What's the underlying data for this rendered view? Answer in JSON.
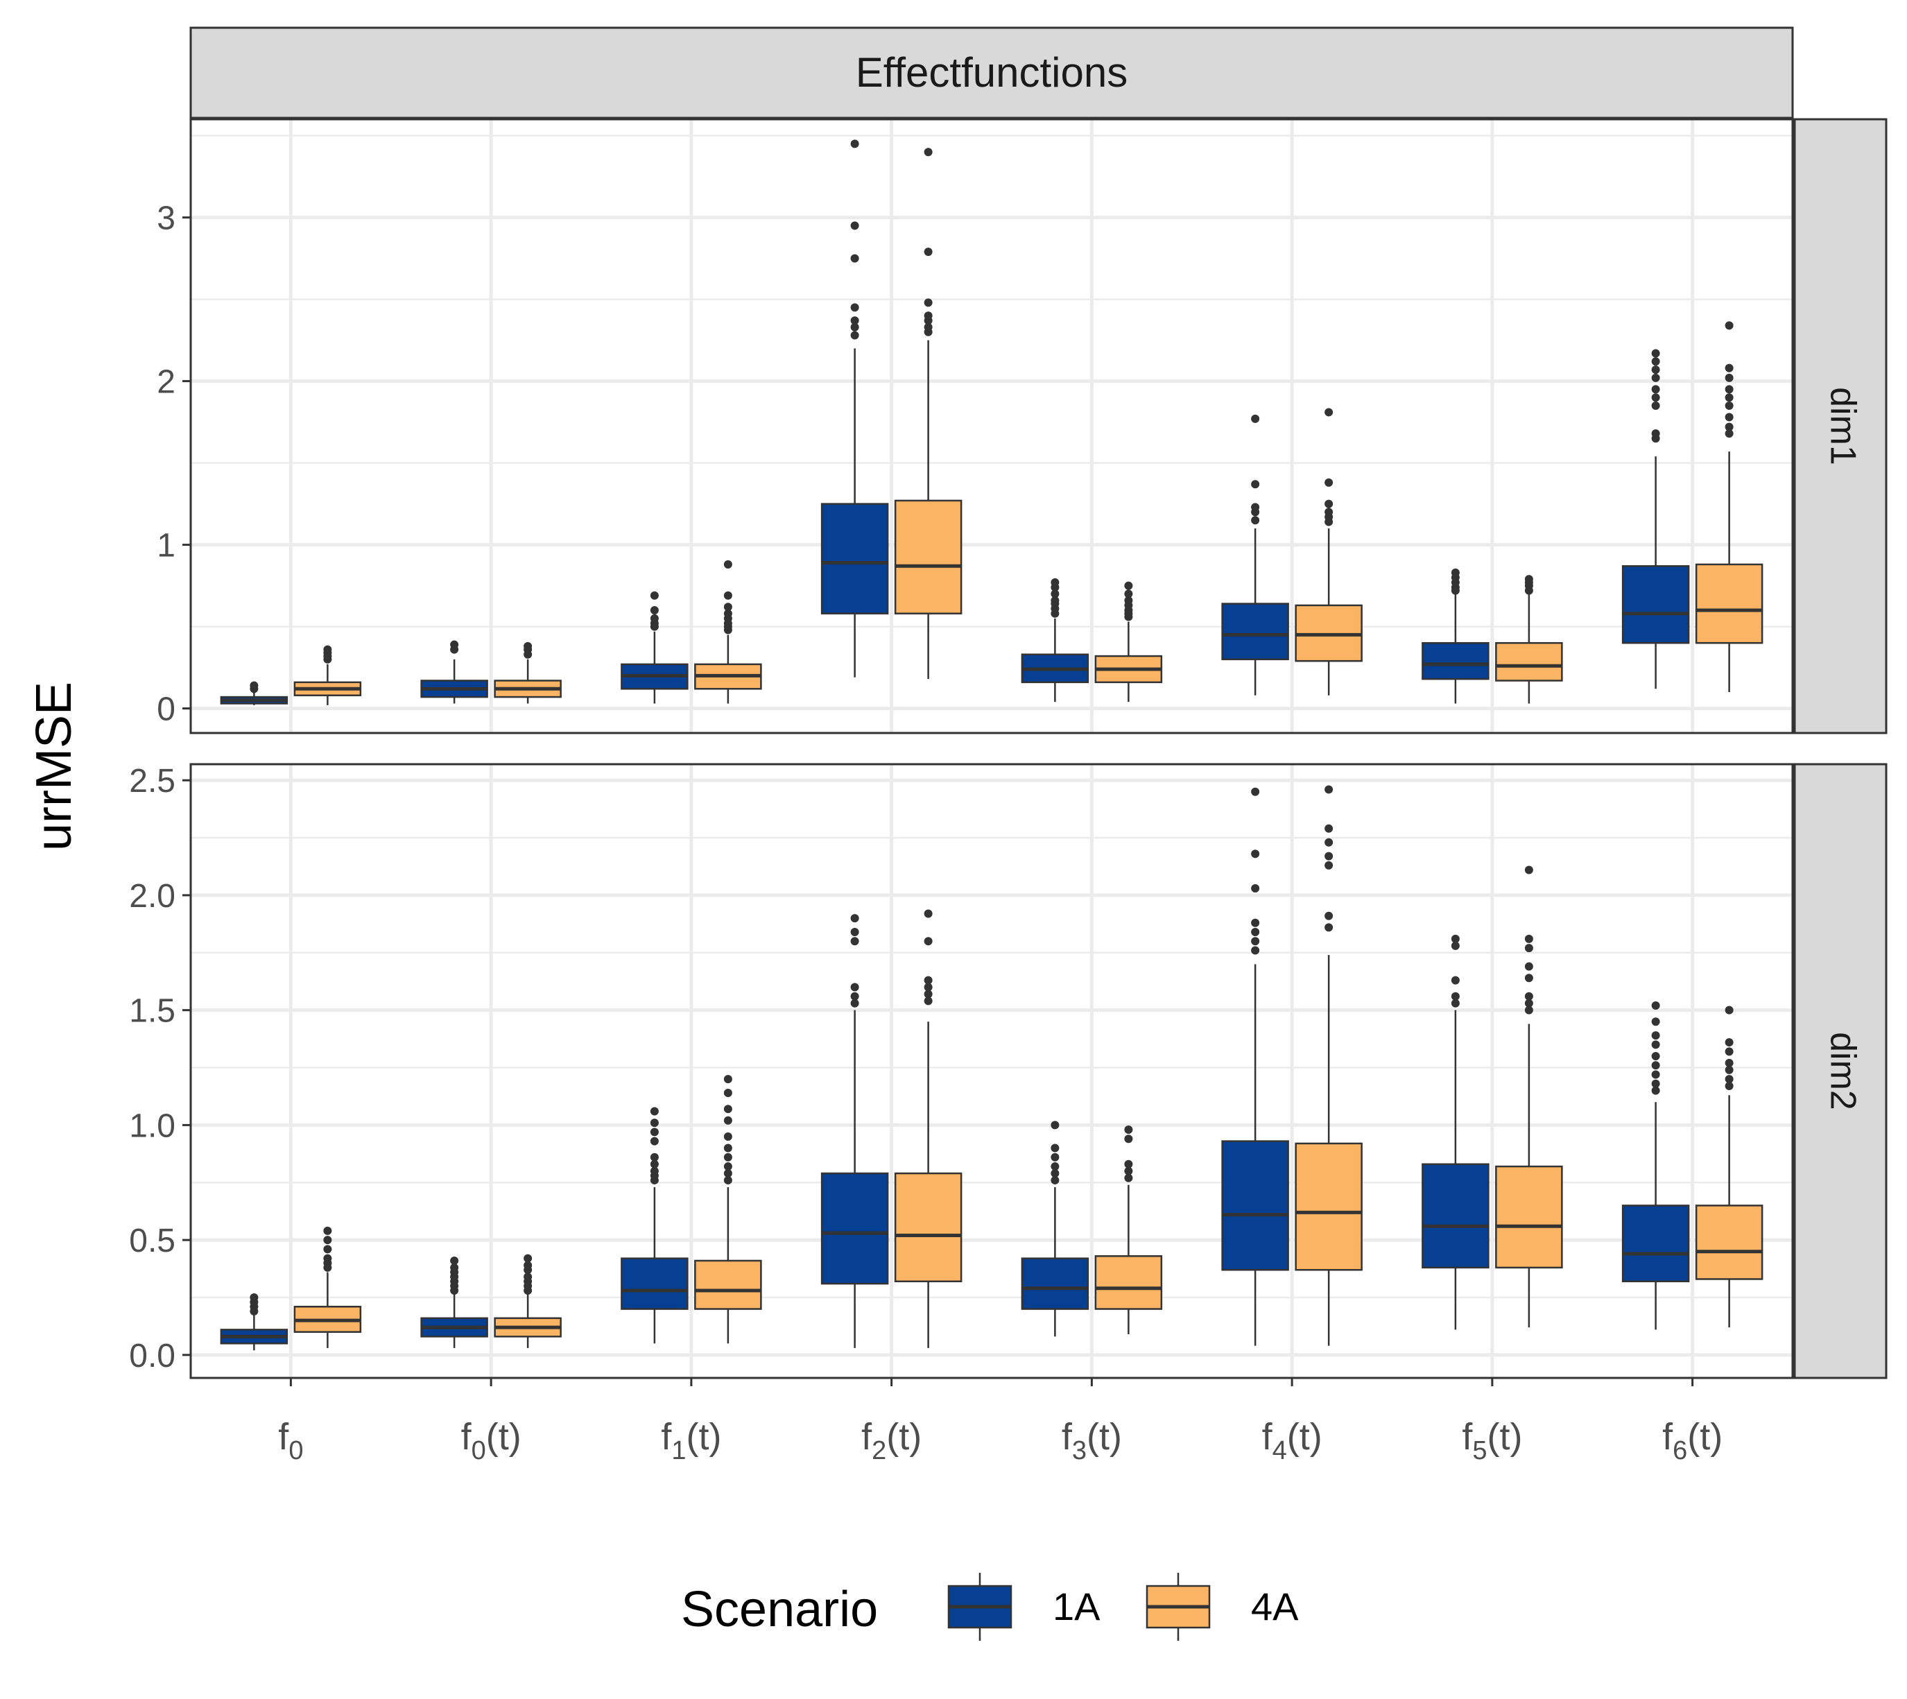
{
  "chart_data": {
    "type": "boxplot",
    "strip_title": "Effectfunctions",
    "ylabel": "urrMSE",
    "legend": {
      "title": "Scenario",
      "position": "bottom",
      "entries": [
        {
          "name": "1A",
          "color": "#073F92"
        },
        {
          "name": "4A",
          "color": "#FBB463"
        }
      ]
    },
    "categories": [
      {
        "base": "f",
        "sub": "0",
        "arg": ""
      },
      {
        "base": "f",
        "sub": "0",
        "arg": "t"
      },
      {
        "base": "f",
        "sub": "1",
        "arg": "t"
      },
      {
        "base": "f",
        "sub": "2",
        "arg": "t"
      },
      {
        "base": "f",
        "sub": "3",
        "arg": "t"
      },
      {
        "base": "f",
        "sub": "4",
        "arg": "t"
      },
      {
        "base": "f",
        "sub": "5",
        "arg": "t"
      },
      {
        "base": "f",
        "sub": "6",
        "arg": "t"
      }
    ],
    "panels": [
      {
        "label": "dim1",
        "ylim": [
          -0.15,
          3.6
        ],
        "major_ticks": [
          0,
          1,
          2,
          3
        ],
        "tick_labels": [
          "0",
          "1",
          "2",
          "3"
        ],
        "minor_ticks": [
          0.5,
          1.5,
          2.5,
          3.5
        ],
        "series": [
          {
            "name": "1A",
            "boxes": [
              {
                "min": 0.02,
                "q1": 0.03,
                "median": 0.05,
                "q3": 0.07,
                "max": 0.1,
                "outliers": [
                  0.12,
                  0.14
                ]
              },
              {
                "min": 0.03,
                "q1": 0.07,
                "median": 0.12,
                "q3": 0.17,
                "max": 0.3,
                "outliers": [
                  0.36,
                  0.39
                ]
              },
              {
                "min": 0.03,
                "q1": 0.12,
                "median": 0.2,
                "q3": 0.27,
                "max": 0.47,
                "outliers": [
                  0.5,
                  0.52,
                  0.55,
                  0.6,
                  0.69
                ]
              },
              {
                "min": 0.19,
                "q1": 0.58,
                "median": 0.89,
                "q3": 1.25,
                "max": 2.2,
                "outliers": [
                  2.28,
                  2.33,
                  2.37,
                  2.45,
                  2.75,
                  2.95,
                  3.45
                ]
              },
              {
                "min": 0.04,
                "q1": 0.16,
                "median": 0.24,
                "q3": 0.33,
                "max": 0.55,
                "outliers": [
                  0.58,
                  0.61,
                  0.64,
                  0.66,
                  0.7,
                  0.74,
                  0.77
                ]
              },
              {
                "min": 0.08,
                "q1": 0.3,
                "median": 0.45,
                "q3": 0.64,
                "max": 1.1,
                "outliers": [
                  1.15,
                  1.2,
                  1.23,
                  1.37,
                  1.77
                ]
              },
              {
                "min": 0.03,
                "q1": 0.18,
                "median": 0.27,
                "q3": 0.4,
                "max": 0.7,
                "outliers": [
                  0.72,
                  0.74,
                  0.77,
                  0.8,
                  0.83
                ]
              },
              {
                "min": 0.12,
                "q1": 0.4,
                "median": 0.58,
                "q3": 0.87,
                "max": 1.54,
                "outliers": [
                  1.65,
                  1.68,
                  1.85,
                  1.9,
                  1.95,
                  2.02,
                  2.07,
                  2.12,
                  2.17
                ]
              }
            ]
          },
          {
            "name": "4A",
            "boxes": [
              {
                "min": 0.02,
                "q1": 0.08,
                "median": 0.12,
                "q3": 0.16,
                "max": 0.27,
                "outliers": [
                  0.3,
                  0.32,
                  0.34,
                  0.36
                ]
              },
              {
                "min": 0.03,
                "q1": 0.07,
                "median": 0.12,
                "q3": 0.17,
                "max": 0.3,
                "outliers": [
                  0.33,
                  0.36,
                  0.38
                ]
              },
              {
                "min": 0.03,
                "q1": 0.12,
                "median": 0.2,
                "q3": 0.27,
                "max": 0.45,
                "outliers": [
                  0.48,
                  0.5,
                  0.52,
                  0.55,
                  0.58,
                  0.62,
                  0.69,
                  0.88
                ]
              },
              {
                "min": 0.18,
                "q1": 0.58,
                "median": 0.87,
                "q3": 1.27,
                "max": 2.25,
                "outliers": [
                  2.3,
                  2.33,
                  2.37,
                  2.4,
                  2.48,
                  2.79,
                  3.4
                ]
              },
              {
                "min": 0.04,
                "q1": 0.16,
                "median": 0.24,
                "q3": 0.32,
                "max": 0.53,
                "outliers": [
                  0.56,
                  0.58,
                  0.6,
                  0.63,
                  0.66,
                  0.7,
                  0.75
                ]
              },
              {
                "min": 0.08,
                "q1": 0.29,
                "median": 0.45,
                "q3": 0.63,
                "max": 1.1,
                "outliers": [
                  1.14,
                  1.17,
                  1.2,
                  1.25,
                  1.38,
                  1.81
                ]
              },
              {
                "min": 0.03,
                "q1": 0.17,
                "median": 0.26,
                "q3": 0.4,
                "max": 0.7,
                "outliers": [
                  0.72,
                  0.75,
                  0.77,
                  0.79
                ]
              },
              {
                "min": 0.1,
                "q1": 0.4,
                "median": 0.6,
                "q3": 0.88,
                "max": 1.57,
                "outliers": [
                  1.68,
                  1.72,
                  1.78,
                  1.85,
                  1.9,
                  1.95,
                  2.02,
                  2.08,
                  2.34
                ]
              }
            ]
          }
        ]
      },
      {
        "label": "dim2",
        "ylim": [
          -0.1,
          2.57
        ],
        "major_ticks": [
          0.0,
          0.5,
          1.0,
          1.5,
          2.0,
          2.5
        ],
        "tick_labels": [
          "0.0",
          "0.5",
          "1.0",
          "1.5",
          "2.0",
          "2.5"
        ],
        "minor_ticks": [
          0.25,
          0.75,
          1.25,
          1.75,
          2.25
        ],
        "series": [
          {
            "name": "1A",
            "boxes": [
              {
                "min": 0.02,
                "q1": 0.05,
                "median": 0.08,
                "q3": 0.11,
                "max": 0.18,
                "outliers": [
                  0.19,
                  0.21,
                  0.23,
                  0.25
                ]
              },
              {
                "min": 0.03,
                "q1": 0.08,
                "median": 0.12,
                "q3": 0.16,
                "max": 0.27,
                "outliers": [
                  0.28,
                  0.3,
                  0.32,
                  0.34,
                  0.36,
                  0.38,
                  0.41
                ]
              },
              {
                "min": 0.05,
                "q1": 0.2,
                "median": 0.28,
                "q3": 0.42,
                "max": 0.73,
                "outliers": [
                  0.76,
                  0.78,
                  0.8,
                  0.83,
                  0.86,
                  0.93,
                  0.97,
                  1.01,
                  1.06
                ]
              },
              {
                "min": 0.03,
                "q1": 0.31,
                "median": 0.53,
                "q3": 0.79,
                "max": 1.5,
                "outliers": [
                  1.53,
                  1.56,
                  1.6,
                  1.8,
                  1.84,
                  1.9
                ]
              },
              {
                "min": 0.08,
                "q1": 0.2,
                "median": 0.29,
                "q3": 0.42,
                "max": 0.73,
                "outliers": [
                  0.76,
                  0.79,
                  0.82,
                  0.86,
                  0.9,
                  1.0
                ]
              },
              {
                "min": 0.04,
                "q1": 0.37,
                "median": 0.61,
                "q3": 0.93,
                "max": 1.7,
                "outliers": [
                  1.76,
                  1.8,
                  1.84,
                  1.88,
                  2.03,
                  2.18,
                  2.45
                ]
              },
              {
                "min": 0.11,
                "q1": 0.38,
                "median": 0.56,
                "q3": 0.83,
                "max": 1.5,
                "outliers": [
                  1.53,
                  1.56,
                  1.63,
                  1.78,
                  1.81
                ]
              },
              {
                "min": 0.11,
                "q1": 0.32,
                "median": 0.44,
                "q3": 0.65,
                "max": 1.1,
                "outliers": [
                  1.15,
                  1.18,
                  1.22,
                  1.26,
                  1.3,
                  1.35,
                  1.39,
                  1.45,
                  1.52
                ]
              }
            ]
          },
          {
            "name": "4A",
            "boxes": [
              {
                "min": 0.03,
                "q1": 0.1,
                "median": 0.15,
                "q3": 0.21,
                "max": 0.36,
                "outliers": [
                  0.38,
                  0.4,
                  0.42,
                  0.46,
                  0.5,
                  0.54
                ]
              },
              {
                "min": 0.03,
                "q1": 0.08,
                "median": 0.12,
                "q3": 0.16,
                "max": 0.27,
                "outliers": [
                  0.28,
                  0.3,
                  0.32,
                  0.34,
                  0.37,
                  0.39,
                  0.42
                ]
              },
              {
                "min": 0.05,
                "q1": 0.2,
                "median": 0.28,
                "q3": 0.41,
                "max": 0.73,
                "outliers": [
                  0.76,
                  0.79,
                  0.82,
                  0.86,
                  0.9,
                  0.95,
                  1.02,
                  1.07,
                  1.14,
                  1.2
                ]
              },
              {
                "min": 0.03,
                "q1": 0.32,
                "median": 0.52,
                "q3": 0.79,
                "max": 1.45,
                "outliers": [
                  1.54,
                  1.57,
                  1.6,
                  1.63,
                  1.8,
                  1.92
                ]
              },
              {
                "min": 0.09,
                "q1": 0.2,
                "median": 0.29,
                "q3": 0.43,
                "max": 0.74,
                "outliers": [
                  0.77,
                  0.8,
                  0.83,
                  0.94,
                  0.98
                ]
              },
              {
                "min": 0.04,
                "q1": 0.37,
                "median": 0.62,
                "q3": 0.92,
                "max": 1.74,
                "outliers": [
                  1.86,
                  1.91,
                  2.13,
                  2.17,
                  2.23,
                  2.29,
                  2.46
                ]
              },
              {
                "min": 0.12,
                "q1": 0.38,
                "median": 0.56,
                "q3": 0.82,
                "max": 1.44,
                "outliers": [
                  1.5,
                  1.53,
                  1.56,
                  1.64,
                  1.69,
                  1.77,
                  1.81,
                  2.11
                ]
              },
              {
                "min": 0.12,
                "q1": 0.33,
                "median": 0.45,
                "q3": 0.65,
                "max": 1.13,
                "outliers": [
                  1.17,
                  1.2,
                  1.24,
                  1.27,
                  1.32,
                  1.36,
                  1.5
                ]
              }
            ]
          }
        ]
      }
    ]
  }
}
